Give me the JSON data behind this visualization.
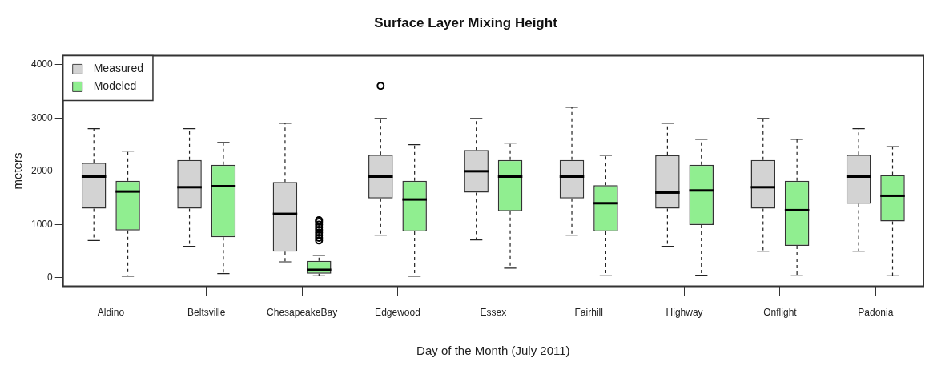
{
  "chart_data": {
    "type": "box",
    "title": "Surface Layer Mixing Height",
    "xlabel": "Day of the Month (July 2011)",
    "ylabel": "meters",
    "categories": [
      "Aldino",
      "Beltsville",
      "ChesapeakeBay",
      "Edgewood",
      "Essex",
      "Fairhill",
      "Highway",
      "Onflight",
      "Padonia"
    ],
    "ylim": [
      -160,
      4170
    ],
    "yticks": [
      0,
      1000,
      2000,
      3000,
      4000
    ],
    "grid": false,
    "legend": "top left",
    "series": [
      {
        "name": "Measured",
        "color": "#d3d3d3",
        "boxes": [
          {
            "low": 700,
            "q1": 1300,
            "median": 1900,
            "q3": 2160,
            "high": 2800
          },
          {
            "low": 590,
            "q1": 1300,
            "median": 1700,
            "q3": 2210,
            "high": 2800
          },
          {
            "low": 300,
            "q1": 490,
            "median": 1200,
            "q3": 1800,
            "high": 2900
          },
          {
            "low": 800,
            "q1": 1490,
            "median": 1900,
            "q3": 2310,
            "high": 2990,
            "outliers": [
              3600
            ]
          },
          {
            "low": 710,
            "q1": 1600,
            "median": 2000,
            "q3": 2400,
            "high": 2990
          },
          {
            "low": 800,
            "q1": 1490,
            "median": 1900,
            "q3": 2210,
            "high": 3200
          },
          {
            "low": 590,
            "q1": 1300,
            "median": 1600,
            "q3": 2300,
            "high": 2900
          },
          {
            "low": 500,
            "q1": 1300,
            "median": 1700,
            "q3": 2210,
            "high": 2990
          },
          {
            "low": 500,
            "q1": 1390,
            "median": 1900,
            "q3": 2310,
            "high": 2800
          }
        ]
      },
      {
        "name": "Modeled",
        "color": "#90ee90",
        "boxes": [
          {
            "low": 30,
            "q1": 890,
            "median": 1620,
            "q3": 1820,
            "high": 2380
          },
          {
            "low": 80,
            "q1": 760,
            "median": 1720,
            "q3": 2120,
            "high": 2540
          },
          {
            "low": 40,
            "q1": 80,
            "median": 150,
            "q3": 320,
            "high": 420,
            "outliers": [
              700,
              750,
              800,
              850,
              900,
              950,
              1000,
              1050,
              1080
            ]
          },
          {
            "low": 30,
            "q1": 870,
            "median": 1470,
            "q3": 1820,
            "high": 2500
          },
          {
            "low": 180,
            "q1": 1250,
            "median": 1900,
            "q3": 2210,
            "high": 2530
          },
          {
            "low": 40,
            "q1": 870,
            "median": 1400,
            "q3": 1740,
            "high": 2300
          },
          {
            "low": 50,
            "q1": 990,
            "median": 1640,
            "q3": 2120,
            "high": 2600
          },
          {
            "low": 40,
            "q1": 600,
            "median": 1270,
            "q3": 1820,
            "high": 2600
          },
          {
            "low": 40,
            "q1": 1060,
            "median": 1540,
            "q3": 1930,
            "high": 2460
          }
        ]
      }
    ]
  }
}
